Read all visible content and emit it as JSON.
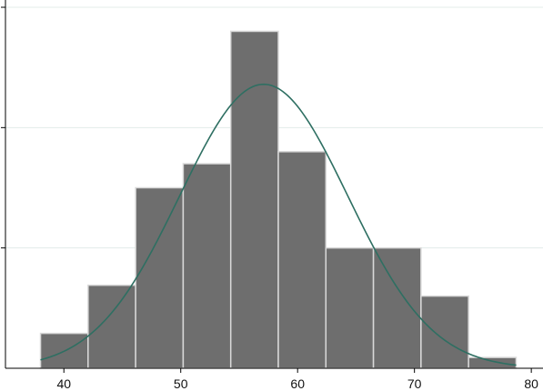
{
  "chart_data": {
    "type": "bar",
    "title": "",
    "xlabel": "",
    "ylabel": "",
    "xlim": [
      35,
      81
    ],
    "ylim": [
      0,
      3.0
    ],
    "x_ticks": [
      40,
      50,
      60,
      70,
      80
    ],
    "y_ticks": [
      1,
      2,
      3
    ],
    "y_tick_labels_shown": false,
    "grid": "horizontal",
    "bins": [
      {
        "start": 38.0,
        "end": 42.07,
        "value": 0.29
      },
      {
        "start": 42.07,
        "end": 46.14,
        "value": 0.69
      },
      {
        "start": 46.14,
        "end": 50.21,
        "value": 1.5
      },
      {
        "start": 50.21,
        "end": 54.28,
        "value": 1.7
      },
      {
        "start": 54.28,
        "end": 58.35,
        "value": 2.8
      },
      {
        "start": 58.35,
        "end": 62.42,
        "value": 1.8
      },
      {
        "start": 62.42,
        "end": 66.49,
        "value": 1.0
      },
      {
        "start": 66.49,
        "end": 70.56,
        "value": 1.0
      },
      {
        "start": 70.56,
        "end": 74.63,
        "value": 0.6
      },
      {
        "start": 74.63,
        "end": 78.7,
        "value": 0.09
      }
    ],
    "density_curve": {
      "mean": 57.1,
      "sd": 7.2,
      "peak": 2.36,
      "x_range": [
        38.0,
        78.7
      ]
    },
    "colors": {
      "bar_fill": "#6e6e6e",
      "bar_edge": "#d9d9d9",
      "curve": "#2e6f62",
      "grid": "#e3ecea",
      "axis": "#000000"
    }
  }
}
